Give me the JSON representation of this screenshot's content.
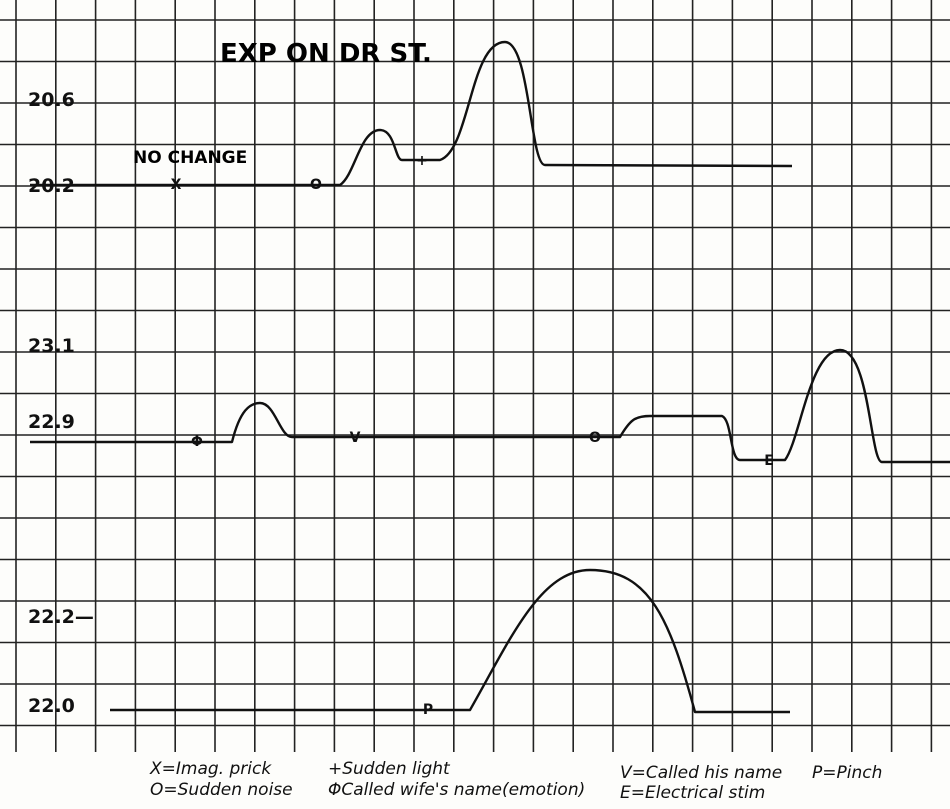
{
  "title": "EXP ON DR ST.",
  "note": "NO CHANGE",
  "traces": [
    {
      "labels": [
        "20.6",
        "20.2"
      ],
      "markers": [
        "X",
        "O",
        "+"
      ]
    },
    {
      "labels": [
        "23.1",
        "22.9"
      ],
      "markers": [
        "Φ",
        "V",
        "O",
        "E"
      ]
    },
    {
      "labels": [
        "22.2—",
        "22.0"
      ],
      "markers": [
        "P"
      ]
    }
  ],
  "legend": [
    "X=Imag. prick",
    "O=Sudden noise",
    "+Sudden light",
    "ΦCalled wife's name(emotion)",
    "V=Called his name",
    "P=Pinch",
    "E=Electrical stim"
  ]
}
